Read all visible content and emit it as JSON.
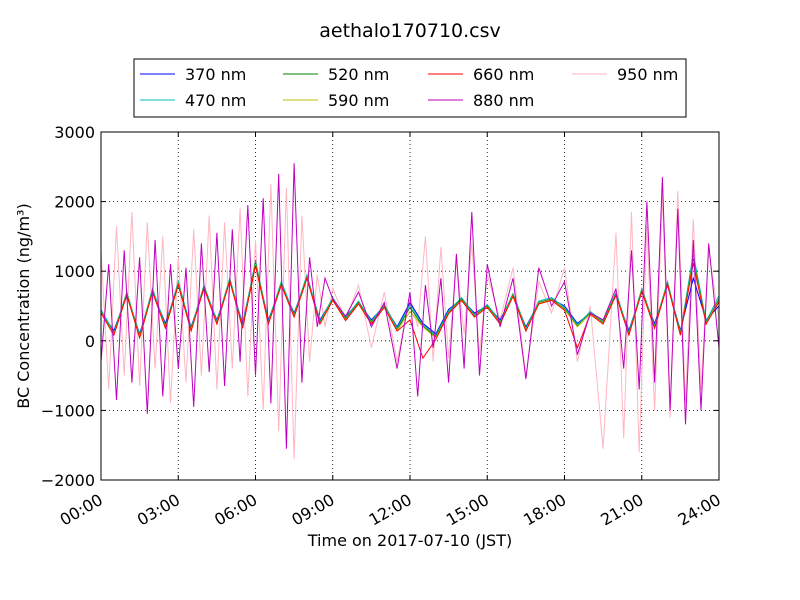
{
  "chart_data": {
    "type": "line",
    "title": "aethalo170710.csv",
    "xlabel": "Time on 2017-07-10 (JST)",
    "ylabel": "BC Concentration (ng/m³)",
    "xlim": [
      0,
      24
    ],
    "ylim": [
      -2000,
      3000
    ],
    "x_ticks": [
      0,
      3,
      6,
      9,
      12,
      15,
      18,
      21,
      24
    ],
    "x_tick_labels": [
      "00:00",
      "03:00",
      "06:00",
      "09:00",
      "12:00",
      "15:00",
      "18:00",
      "21:00",
      "24:00"
    ],
    "y_ticks": [
      -2000,
      -1000,
      0,
      1000,
      2000,
      3000
    ],
    "y_tick_labels": [
      "−2000",
      "−1000",
      "0",
      "1000",
      "2000",
      "3000"
    ],
    "grid": "dotted",
    "legend_placement": "above plot, 4 columns",
    "series": [
      {
        "name": "370 nm",
        "color": "#0000ff",
        "x": [
          0,
          0.5,
          1,
          1.5,
          2,
          2.5,
          3,
          3.5,
          4,
          4.5,
          5,
          5.5,
          6,
          6.5,
          7,
          7.5,
          8,
          8.5,
          9,
          9.5,
          10,
          10.5,
          11,
          11.5,
          12,
          12.5,
          13,
          13.5,
          14,
          14.5,
          15,
          15.5,
          16,
          16.5,
          17,
          17.5,
          18,
          18.5,
          19,
          19.5,
          20,
          20.5,
          21,
          21.5,
          22,
          22.5,
          23,
          23.5,
          24
        ],
        "y": [
          400,
          150,
          650,
          100,
          700,
          250,
          800,
          200,
          750,
          300,
          850,
          250,
          1100,
          300,
          800,
          400,
          900,
          300,
          600,
          350,
          550,
          300,
          500,
          200,
          550,
          250,
          100,
          450,
          600,
          400,
          500,
          300,
          650,
          200,
          550,
          600,
          500,
          250,
          400,
          300,
          650,
          150,
          700,
          250,
          800,
          150,
          900,
          300,
          500
        ]
      },
      {
        "name": "470 nm",
        "color": "#00bfbf",
        "x": [
          0,
          0.5,
          1,
          1.5,
          2,
          2.5,
          3,
          3.5,
          4,
          4.5,
          5,
          5.5,
          6,
          6.5,
          7,
          7.5,
          8,
          8.5,
          9,
          9.5,
          10,
          10.5,
          11,
          11.5,
          12,
          12.5,
          13,
          13.5,
          14,
          14.5,
          15,
          15.5,
          16,
          16.5,
          17,
          17.5,
          18,
          18.5,
          19,
          19.5,
          20,
          20.5,
          21,
          21.5,
          22,
          22.5,
          23,
          23.5,
          24
        ],
        "y": [
          450,
          120,
          700,
          80,
          750,
          220,
          850,
          180,
          800,
          280,
          900,
          220,
          1150,
          280,
          850,
          380,
          950,
          280,
          620,
          330,
          570,
          280,
          520,
          180,
          520,
          230,
          80,
          430,
          620,
          380,
          520,
          280,
          680,
          180,
          570,
          620,
          480,
          230,
          420,
          280,
          700,
          120,
          750,
          220,
          850,
          120,
          1250,
          280,
          650
        ]
      },
      {
        "name": "520 nm",
        "color": "#008000",
        "x": [
          0,
          0.5,
          1,
          1.5,
          2,
          2.5,
          3,
          3.5,
          4,
          4.5,
          5,
          5.5,
          6,
          6.5,
          7,
          7.5,
          8,
          8.5,
          9,
          9.5,
          10,
          10.5,
          11,
          11.5,
          12,
          12.5,
          13,
          13.5,
          14,
          14.5,
          15,
          15.5,
          16,
          16.5,
          17,
          17.5,
          18,
          18.5,
          19,
          19.5,
          20,
          20.5,
          21,
          21.5,
          22,
          22.5,
          23,
          23.5,
          24
        ],
        "y": [
          420,
          100,
          680,
          60,
          720,
          200,
          820,
          160,
          780,
          260,
          880,
          200,
          1120,
          260,
          820,
          360,
          920,
          260,
          600,
          310,
          550,
          260,
          500,
          160,
          480,
          210,
          60,
          410,
          600,
          360,
          500,
          260,
          660,
          160,
          550,
          600,
          460,
          210,
          400,
          260,
          680,
          100,
          730,
          200,
          830,
          100,
          1180,
          260,
          600
        ]
      },
      {
        "name": "590 nm",
        "color": "#bfbf00",
        "x": [
          0,
          0.5,
          1,
          1.5,
          2,
          2.5,
          3,
          3.5,
          4,
          4.5,
          5,
          5.5,
          6,
          6.5,
          7,
          7.5,
          8,
          8.5,
          9,
          9.5,
          10,
          10.5,
          11,
          11.5,
          12,
          12.5,
          13,
          13.5,
          14,
          14.5,
          15,
          15.5,
          16,
          16.5,
          17,
          17.5,
          18,
          18.5,
          19,
          19.5,
          20,
          20.5,
          21,
          21.5,
          22,
          22.5,
          23,
          23.5,
          24
        ],
        "y": [
          410,
          90,
          670,
          50,
          710,
          190,
          810,
          150,
          770,
          250,
          870,
          190,
          1100,
          250,
          810,
          350,
          910,
          250,
          590,
          300,
          540,
          250,
          490,
          150,
          420,
          200,
          40,
          400,
          590,
          350,
          490,
          250,
          650,
          150,
          540,
          590,
          450,
          200,
          390,
          250,
          670,
          90,
          720,
          190,
          820,
          90,
          1150,
          250,
          580
        ]
      },
      {
        "name": "660 nm",
        "color": "#ff0000",
        "x": [
          0,
          0.5,
          1,
          1.5,
          2,
          2.5,
          3,
          3.5,
          4,
          4.5,
          5,
          5.5,
          6,
          6.5,
          7,
          7.5,
          8,
          8.5,
          9,
          9.5,
          10,
          10.5,
          11,
          11.5,
          12,
          12.5,
          13,
          13.5,
          14,
          14.5,
          15,
          15.5,
          16,
          16.5,
          17,
          17.5,
          18,
          18.5,
          19,
          19.5,
          20,
          20.5,
          21,
          21.5,
          22,
          22.5,
          23,
          23.5,
          24
        ],
        "y": [
          400,
          80,
          660,
          40,
          700,
          180,
          800,
          140,
          760,
          240,
          860,
          180,
          1080,
          240,
          800,
          340,
          900,
          240,
          580,
          290,
          530,
          240,
          480,
          140,
          300,
          -250,
          20,
          390,
          580,
          340,
          480,
          240,
          640,
          140,
          530,
          580,
          440,
          -100,
          380,
          240,
          660,
          80,
          710,
          180,
          810,
          80,
          1120,
          240,
          560
        ]
      },
      {
        "name": "880 nm",
        "color": "#bf00bf",
        "x": [
          0,
          0.3,
          0.6,
          0.9,
          1.2,
          1.5,
          1.8,
          2.1,
          2.4,
          2.7,
          3,
          3.3,
          3.6,
          3.9,
          4.2,
          4.5,
          4.8,
          5.1,
          5.4,
          5.7,
          6,
          6.3,
          6.6,
          6.9,
          7.2,
          7.5,
          7.8,
          8.1,
          8.4,
          8.7,
          9,
          9.5,
          10,
          10.5,
          11,
          11.5,
          12,
          12.3,
          12.6,
          12.9,
          13.2,
          13.5,
          13.8,
          14.1,
          14.4,
          14.7,
          15,
          15.5,
          16,
          16.5,
          17,
          17.5,
          18,
          18.5,
          19,
          19.5,
          20,
          20.3,
          20.6,
          20.9,
          21.2,
          21.5,
          21.8,
          22.1,
          22.4,
          22.7,
          23,
          23.3,
          23.6,
          24
        ],
        "y": [
          -300,
          1100,
          -850,
          1300,
          -600,
          1200,
          -1050,
          1450,
          -800,
          1100,
          -400,
          1050,
          -950,
          1400,
          -450,
          1550,
          -650,
          1600,
          -300,
          1950,
          -500,
          2050,
          -900,
          2400,
          -1550,
          2550,
          -600,
          1200,
          200,
          900,
          600,
          350,
          700,
          200,
          550,
          -400,
          700,
          -800,
          800,
          -100,
          900,
          -600,
          1250,
          -400,
          1850,
          -500,
          1100,
          200,
          900,
          -550,
          1050,
          500,
          850,
          -200,
          400,
          300,
          750,
          -400,
          1300,
          -700,
          2000,
          -600,
          2350,
          -1000,
          1900,
          -1200,
          1450,
          -1000,
          1400,
          -100
        ]
      },
      {
        "name": "950 nm",
        "color": "#ffb6c1",
        "x": [
          0,
          0.3,
          0.6,
          0.9,
          1.2,
          1.5,
          1.8,
          2.1,
          2.4,
          2.7,
          3,
          3.3,
          3.6,
          3.9,
          4.2,
          4.5,
          4.8,
          5.1,
          5.4,
          5.7,
          6,
          6.3,
          6.6,
          6.9,
          7.2,
          7.5,
          7.8,
          8.1,
          8.4,
          8.7,
          9,
          9.5,
          10,
          10.5,
          11,
          11.5,
          12,
          12.3,
          12.6,
          12.9,
          13.2,
          13.5,
          13.8,
          14.1,
          14.4,
          14.7,
          15,
          15.5,
          16,
          16.5,
          17,
          17.5,
          18,
          18.5,
          19,
          19.5,
          20,
          20.3,
          20.6,
          20.9,
          21.2,
          21.5,
          21.8,
          22.1,
          22.4,
          22.7,
          23,
          23.3,
          23.6,
          24
        ],
        "y": [
          1300,
          -700,
          1650,
          -500,
          1850,
          -650,
          1700,
          -400,
          1500,
          -900,
          1200,
          -600,
          1600,
          -500,
          1800,
          -700,
          1700,
          -400,
          1900,
          -800,
          1450,
          -1000,
          2250,
          -1300,
          2200,
          -1700,
          1800,
          -300,
          950,
          200,
          750,
          300,
          800,
          -100,
          700,
          -300,
          650,
          200,
          1500,
          -300,
          1350,
          -250,
          1150,
          100,
          1400,
          -200,
          950,
          300,
          1050,
          -500,
          850,
          400,
          1050,
          -300,
          500,
          -1550,
          1550,
          -1400,
          1850,
          -1600,
          1650,
          -1000,
          2100,
          -1100,
          2150,
          -900,
          1750,
          -700,
          1300,
          300
        ]
      }
    ]
  }
}
